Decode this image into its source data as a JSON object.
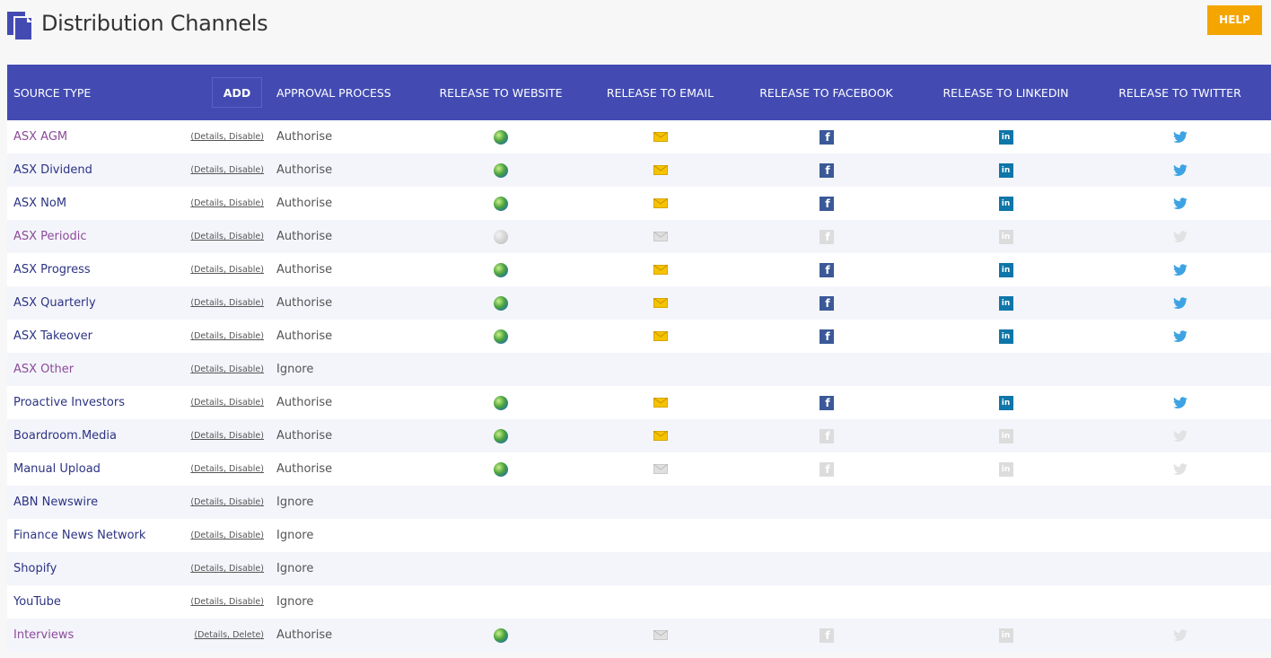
{
  "page": {
    "title": "Distribution Channels",
    "help_label": "HELP"
  },
  "table": {
    "headers": {
      "source_type": "SOURCE TYPE",
      "add": "ADD",
      "approval": "APPROVAL PROCESS",
      "website": "RELEASE TO WEBSITE",
      "email": "RELEASE TO EMAIL",
      "facebook": "RELEASE TO FACEBOOK",
      "linkedin": "RELEASE TO LINKEDIN",
      "twitter": "RELEASE TO TWITTER"
    },
    "rows": [
      {
        "name": "ASX AGM",
        "visited": true,
        "links": "(Details, Disable)",
        "approval": "Authorise",
        "website": "on",
        "email": "on",
        "facebook": "on",
        "linkedin": "on",
        "twitter": "on"
      },
      {
        "name": "ASX Dividend",
        "visited": false,
        "links": "(Details, Disable)",
        "approval": "Authorise",
        "website": "on",
        "email": "on",
        "facebook": "on",
        "linkedin": "on",
        "twitter": "on"
      },
      {
        "name": "ASX NoM",
        "visited": false,
        "links": "(Details, Disable)",
        "approval": "Authorise",
        "website": "on",
        "email": "on",
        "facebook": "on",
        "linkedin": "on",
        "twitter": "on"
      },
      {
        "name": "ASX Periodic",
        "visited": true,
        "links": "(Details, Disable)",
        "approval": "Authorise",
        "website": "off",
        "email": "off",
        "facebook": "off",
        "linkedin": "off",
        "twitter": "off"
      },
      {
        "name": "ASX Progress",
        "visited": false,
        "links": "(Details, Disable)",
        "approval": "Authorise",
        "website": "on",
        "email": "on",
        "facebook": "on",
        "linkedin": "on",
        "twitter": "on"
      },
      {
        "name": "ASX Quarterly",
        "visited": false,
        "links": "(Details, Disable)",
        "approval": "Authorise",
        "website": "on",
        "email": "on",
        "facebook": "on",
        "linkedin": "on",
        "twitter": "on"
      },
      {
        "name": "ASX Takeover",
        "visited": false,
        "links": "(Details, Disable)",
        "approval": "Authorise",
        "website": "on",
        "email": "on",
        "facebook": "on",
        "linkedin": "on",
        "twitter": "on"
      },
      {
        "name": "ASX Other",
        "visited": true,
        "links": "(Details, Disable)",
        "approval": "Ignore",
        "website": "none",
        "email": "none",
        "facebook": "none",
        "linkedin": "none",
        "twitter": "none"
      },
      {
        "name": "Proactive Investors",
        "visited": false,
        "links": "(Details, Disable)",
        "approval": "Authorise",
        "website": "on",
        "email": "on",
        "facebook": "on",
        "linkedin": "on",
        "twitter": "on"
      },
      {
        "name": "Boardroom.Media",
        "visited": false,
        "links": "(Details, Disable)",
        "approval": "Authorise",
        "website": "on",
        "email": "on",
        "facebook": "off",
        "linkedin": "off",
        "twitter": "off"
      },
      {
        "name": "Manual Upload",
        "visited": false,
        "links": "(Details, Disable)",
        "approval": "Authorise",
        "website": "on",
        "email": "off",
        "facebook": "off",
        "linkedin": "off",
        "twitter": "off"
      },
      {
        "name": "ABN Newswire",
        "visited": false,
        "links": "(Details, Disable)",
        "approval": "Ignore",
        "website": "none",
        "email": "none",
        "facebook": "none",
        "linkedin": "none",
        "twitter": "none"
      },
      {
        "name": "Finance News Network",
        "visited": false,
        "links": "(Details, Disable)",
        "approval": "Ignore",
        "website": "none",
        "email": "none",
        "facebook": "none",
        "linkedin": "none",
        "twitter": "none"
      },
      {
        "name": "Shopify",
        "visited": false,
        "links": "(Details, Disable)",
        "approval": "Ignore",
        "website": "none",
        "email": "none",
        "facebook": "none",
        "linkedin": "none",
        "twitter": "none"
      },
      {
        "name": "YouTube",
        "visited": false,
        "links": "(Details, Disable)",
        "approval": "Ignore",
        "website": "none",
        "email": "none",
        "facebook": "none",
        "linkedin": "none",
        "twitter": "none"
      },
      {
        "name": "Interviews",
        "visited": true,
        "links": "(Details, Delete)",
        "approval": "Authorise",
        "website": "on",
        "email": "off",
        "facebook": "off",
        "linkedin": "off",
        "twitter": "off"
      }
    ]
  },
  "icons": {
    "title": "document-stack-icon",
    "website": "globe-icon",
    "email": "envelope-icon",
    "facebook": "facebook-icon",
    "linkedin": "linkedin-icon",
    "twitter": "twitter-bird-icon"
  },
  "colors": {
    "header_bg": "#434bb3",
    "help_bg": "#f5a500",
    "link": "#2c3383",
    "visited_link": "#8b4a98"
  }
}
